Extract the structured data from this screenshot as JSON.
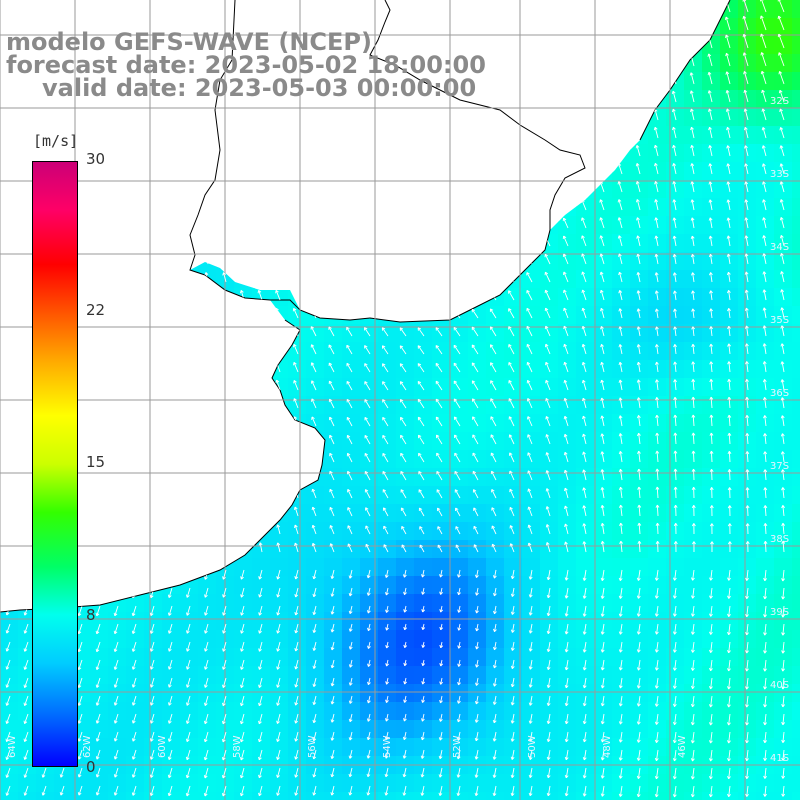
{
  "title": {
    "line1": "modelo GEFS-WAVE (NCEP)",
    "line2": "forecast date: 2023-05-02 18:00:00",
    "line3": "valid date: 2023-05-03 00:00:00"
  },
  "colorbar": {
    "unit": "[m/s]",
    "ticks": [
      "30",
      "22",
      "15",
      "8",
      "0"
    ],
    "tick_values": [
      30,
      22,
      15,
      8,
      0
    ],
    "min": 0,
    "max": 30,
    "colors": [
      "#0000ff",
      "#0066ff",
      "#00ccff",
      "#00ffee",
      "#00ff66",
      "#33ff00",
      "#ccff00",
      "#ffff00",
      "#ffaa00",
      "#ff5500",
      "#ff0000",
      "#ff0066",
      "#cc0077"
    ]
  },
  "map": {
    "land_color": "#ffffff",
    "coast_color": "#000000",
    "grid_color": "#9a9a9a",
    "lat_labels": [
      "32S",
      "33S",
      "34S",
      "35S",
      "36S",
      "37S",
      "38S",
      "39S",
      "40S",
      "41S"
    ],
    "lon_labels": [
      "64W",
      "62W",
      "60W",
      "58W",
      "56W",
      "54W",
      "52W",
      "50W",
      "48W",
      "46W"
    ]
  }
}
